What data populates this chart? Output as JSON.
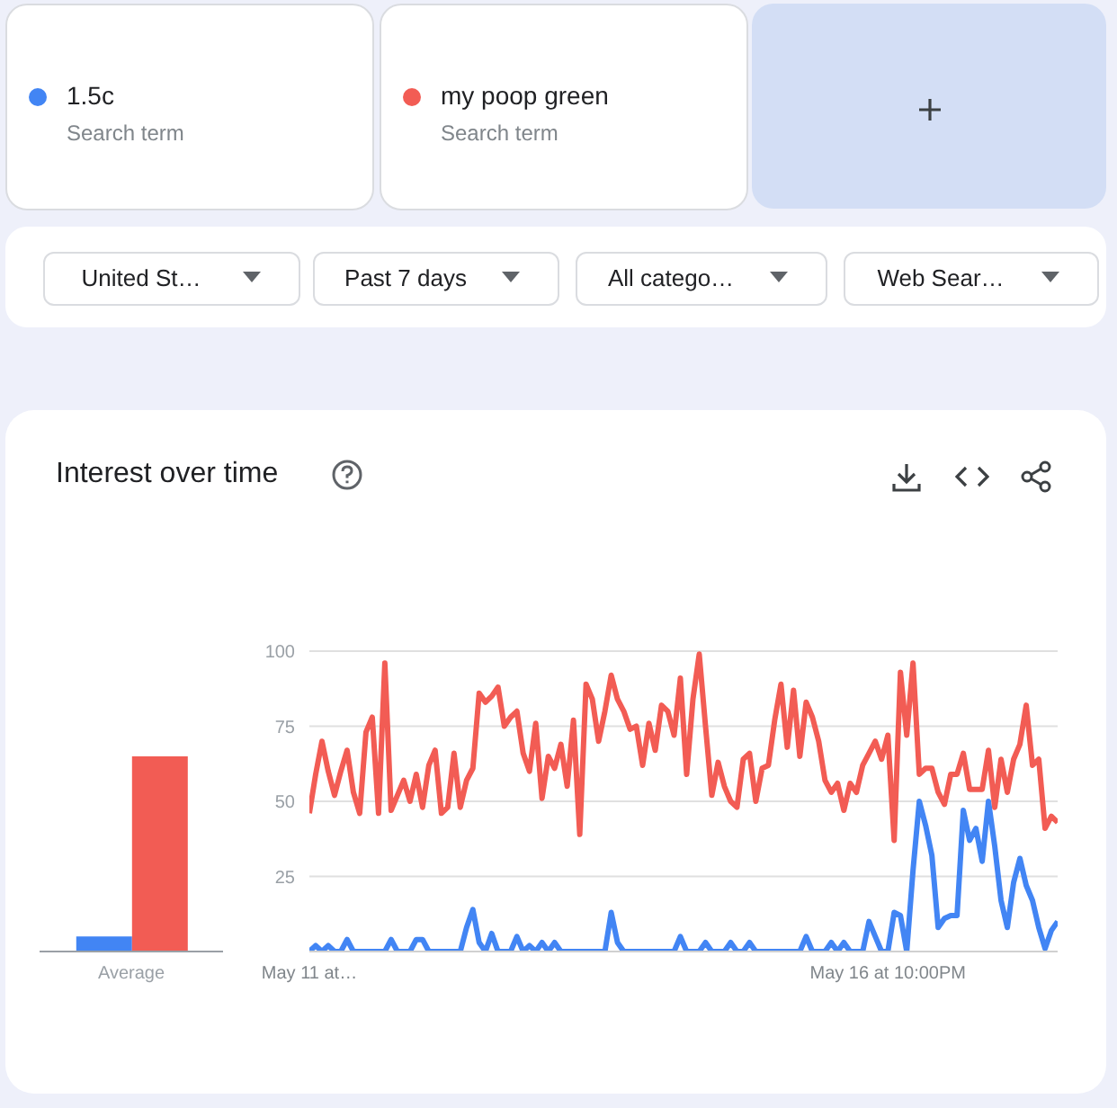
{
  "chart_data": [
    {
      "type": "bar",
      "title": "Interest over time",
      "categories": [
        "Average"
      ],
      "series": [
        {
          "color": "#4285f4",
          "values": [
            5
          ]
        },
        {
          "color": "#f25c54",
          "values": [
            65
          ]
        }
      ],
      "ylim": [
        0,
        100
      ],
      "tick_labels": "x"
    },
    {
      "type": "line",
      "annotations": [
        "Search term",
        "Search term",
        "United St…",
        "Past 7 days",
        "All catego…",
        "Web Sear…"
      ],
      "categories": [
        "May 11 at…",
        null,
        null,
        null,
        null,
        null,
        null,
        null,
        null,
        null,
        null,
        null,
        null,
        null,
        null,
        null,
        null,
        null,
        null,
        null,
        null,
        null,
        null,
        null,
        null,
        null,
        null,
        null,
        null,
        null,
        null,
        null,
        null,
        null,
        null,
        null,
        null,
        null,
        null,
        null,
        null,
        null,
        null,
        null,
        null,
        null,
        null,
        null,
        null,
        null,
        null,
        null,
        null,
        null,
        null,
        null,
        null,
        null,
        null,
        null,
        null,
        null,
        null,
        null,
        null,
        null,
        null,
        null,
        null,
        null,
        null,
        null,
        null,
        null,
        null,
        null,
        null,
        null,
        null,
        null,
        null,
        null,
        null,
        null,
        null,
        null,
        null,
        null,
        null,
        null,
        null,
        null,
        "May 16 at 10:00PM",
        null,
        null,
        null,
        null,
        null,
        null,
        null,
        null,
        null,
        null,
        null,
        null,
        null,
        null,
        null,
        null,
        null,
        null,
        null,
        null,
        null,
        null,
        null,
        null,
        null,
        null,
        null
      ],
      "series": [
        {
          "name": "1.5c",
          "color": "#4285f4",
          "values": [
            0,
            2,
            0,
            2,
            0,
            0,
            4,
            0,
            0,
            0,
            0,
            0,
            0,
            4,
            0,
            0,
            0,
            4,
            4,
            0,
            0,
            0,
            0,
            0,
            0,
            8,
            14,
            3,
            0,
            6,
            0,
            0,
            0,
            5,
            0,
            2,
            0,
            3,
            0,
            3,
            0,
            0,
            0,
            0,
            0,
            0,
            0,
            0,
            13,
            3,
            0,
            0,
            0,
            0,
            0,
            0,
            0,
            0,
            0,
            5,
            0,
            0,
            0,
            3,
            0,
            0,
            0,
            3,
            0,
            0,
            3,
            0,
            0,
            0,
            0,
            0,
            0,
            0,
            0,
            5,
            0,
            0,
            0,
            3,
            0,
            3,
            0,
            0,
            0,
            10,
            5,
            0,
            0,
            13,
            12,
            0,
            27,
            50,
            42,
            32,
            8,
            11,
            12,
            12,
            47,
            37,
            41,
            30,
            50,
            35,
            17,
            8,
            23,
            31,
            22,
            17,
            8,
            1,
            7,
            10
          ]
        },
        {
          "name": "my poop green",
          "color": "#f25c54",
          "values": [
            46,
            59,
            70,
            60,
            52,
            60,
            67,
            53,
            46,
            73,
            78,
            46,
            96,
            47,
            52,
            57,
            50,
            59,
            48,
            62,
            67,
            46,
            48,
            66,
            48,
            57,
            61,
            86,
            83,
            85,
            88,
            75,
            78,
            80,
            66,
            60,
            76,
            51,
            65,
            61,
            69,
            55,
            77,
            39,
            89,
            84,
            70,
            80,
            92,
            84,
            80,
            74,
            75,
            62,
            76,
            67,
            82,
            80,
            72,
            91,
            59,
            84,
            99,
            75,
            52,
            63,
            55,
            50,
            48,
            64,
            66,
            50,
            61,
            62,
            77,
            89,
            68,
            87,
            65,
            83,
            78,
            70,
            57,
            53,
            56,
            47,
            56,
            53,
            62,
            66,
            70,
            64,
            72,
            37,
            93,
            72,
            96,
            59,
            61,
            61,
            53,
            49,
            59,
            59,
            66,
            54,
            54,
            54,
            67,
            48,
            64,
            53,
            64,
            69,
            82,
            62,
            64,
            41,
            45,
            43
          ]
        }
      ],
      "ylim": [
        0,
        100
      ],
      "yticks": [
        {
          "value": 0,
          "label": null
        },
        25,
        50,
        75,
        100
      ],
      "grid": "y",
      "legend": "top",
      "marker": "none",
      "line_style": "solid"
    }
  ]
}
